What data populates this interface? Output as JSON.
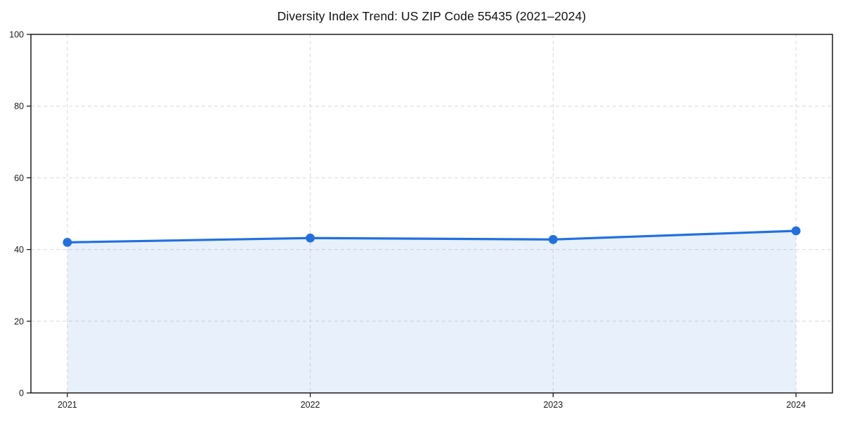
{
  "page": {
    "background": "#ffffff"
  },
  "chart_data": {
    "type": "line",
    "title": "Diversity Index Trend: US ZIP Code 55435 (2021–2024)",
    "x": [
      "2021",
      "2022",
      "2023",
      "2024"
    ],
    "series": [
      {
        "name": "Diversity Index",
        "values": [
          42.0,
          43.2,
          42.8,
          45.2
        ]
      }
    ],
    "xlabel": "",
    "ylabel": "",
    "ylim": [
      0,
      100
    ],
    "yticks": [
      0,
      20,
      40,
      60,
      80,
      100
    ],
    "grid": true,
    "grid_style": "dashed",
    "legend_position": "none",
    "area_fill": true,
    "colors": {
      "line": "#2170e0",
      "marker": "#2170e0",
      "area": "rgba(33,112,224,0.10)",
      "grid": "#d9d9d9",
      "spine": "#1a1a1a",
      "tick_text": "#1a1a1a",
      "title_text": "#111111"
    }
  }
}
